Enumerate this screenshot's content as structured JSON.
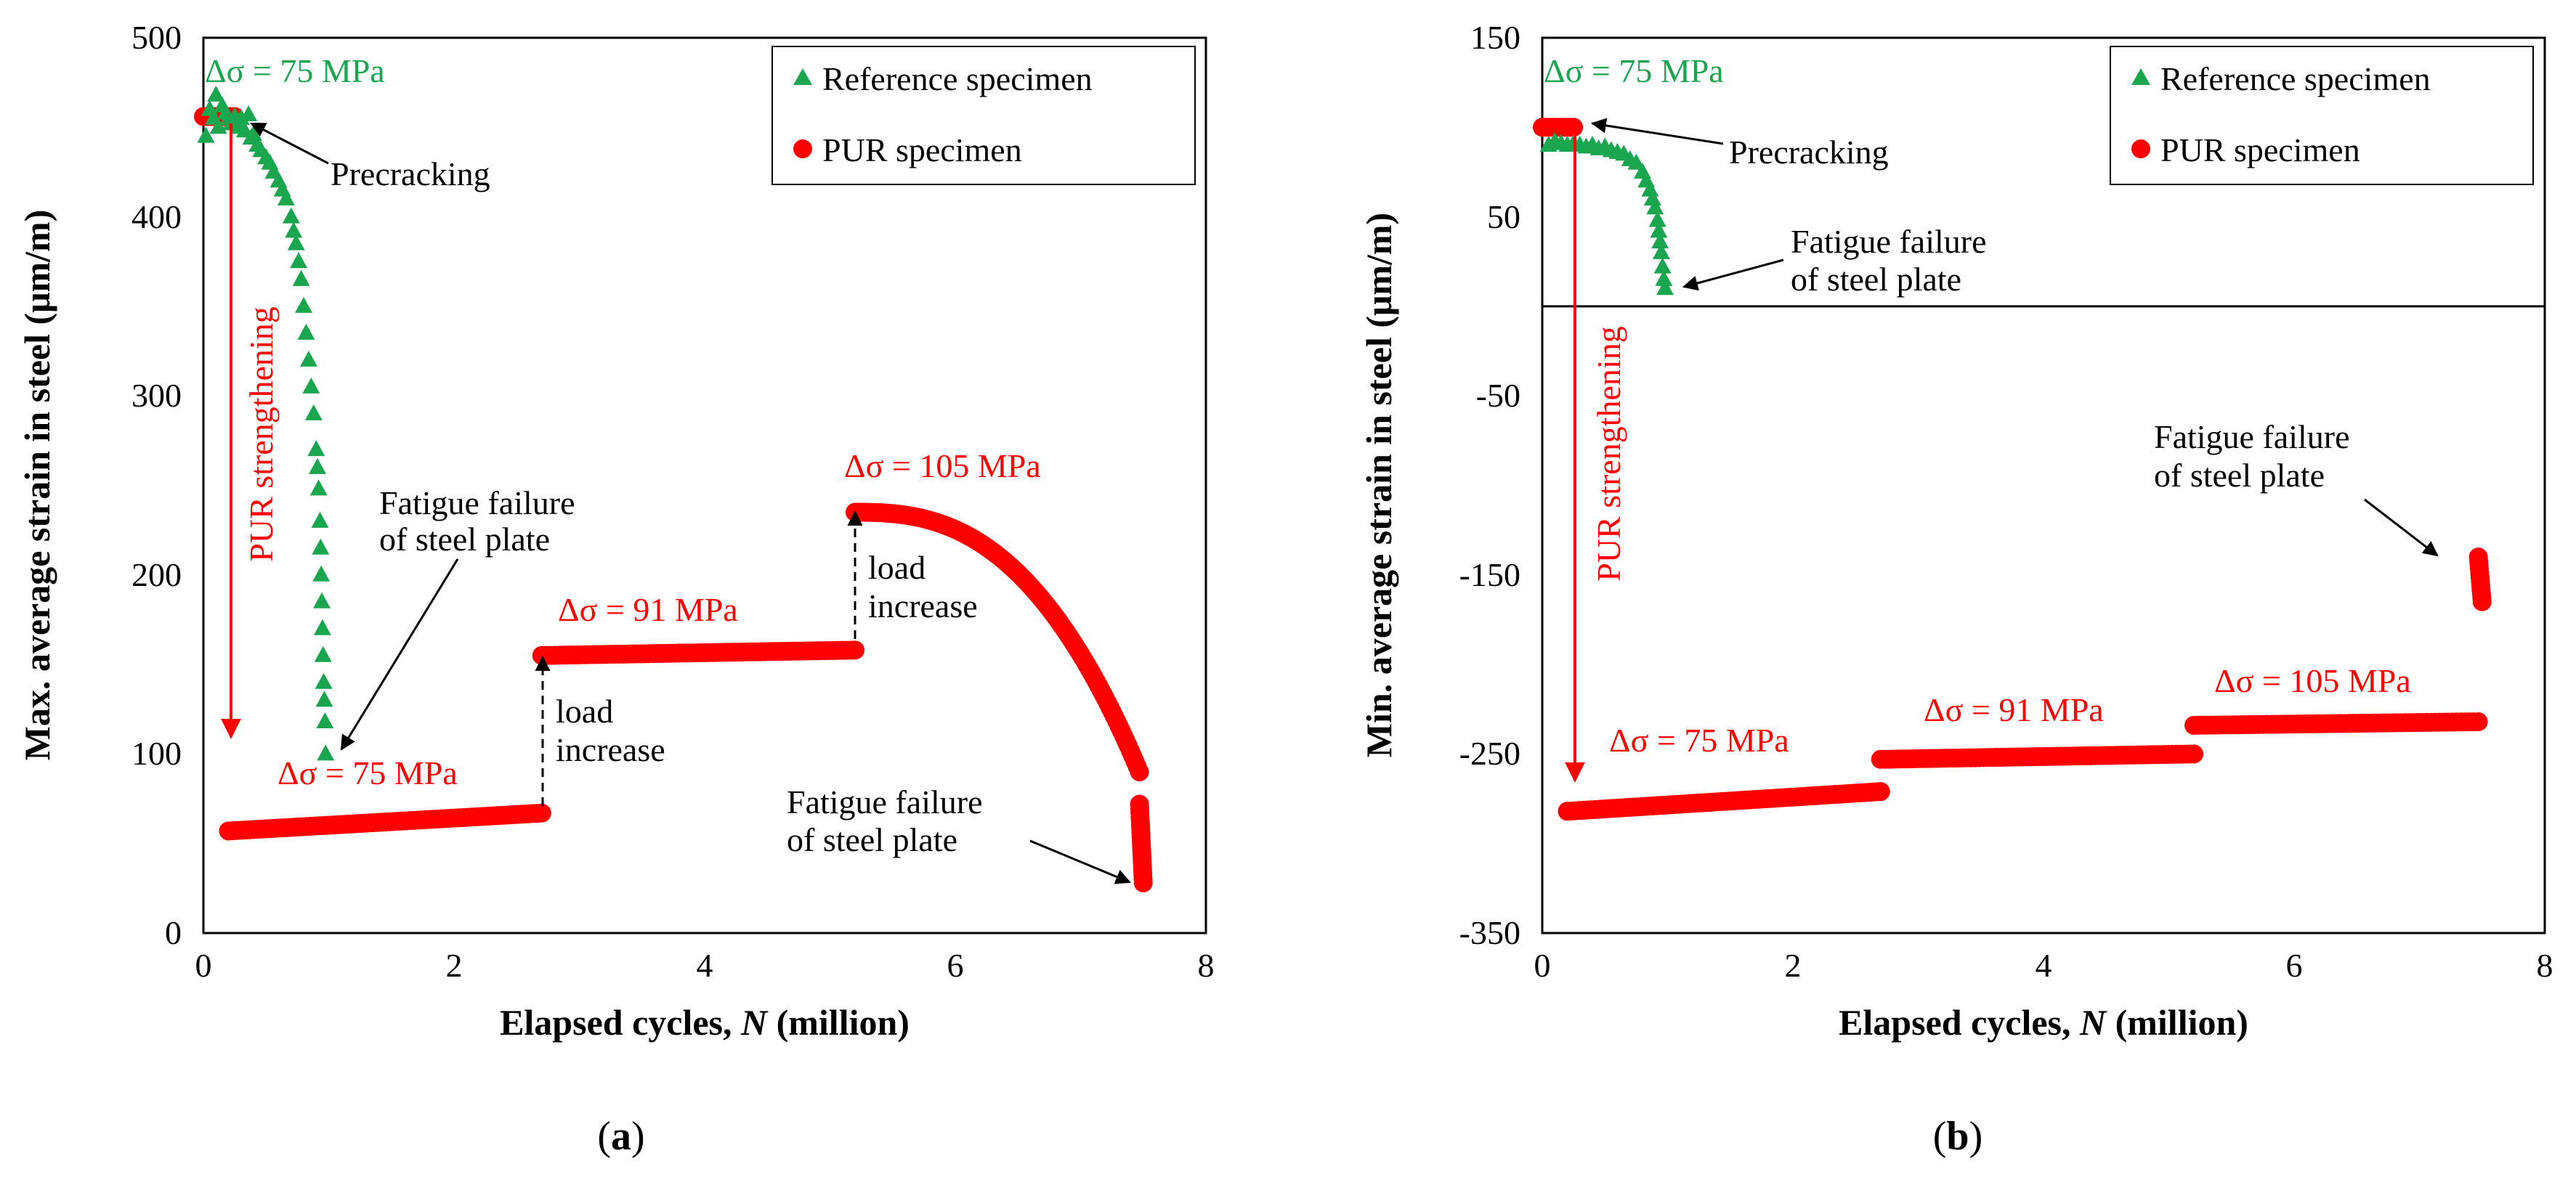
{
  "colors": {
    "reference": "#1aa64f",
    "pur": "#ff0000",
    "axis": "#000000",
    "annotation": "#000000"
  },
  "chart_data": [
    {
      "type": "scatter",
      "panel": "(a)",
      "panel_letter": "a",
      "xlabel": "Elapsed cycles, ",
      "xlabel_var": "N",
      "xlabel_suffix": " (million)",
      "ylabel": "Max. average strain in steel (μm/m)",
      "xlim": [
        0,
        8
      ],
      "ylim": [
        0,
        500
      ],
      "xticks": [
        0,
        2,
        4,
        6,
        8
      ],
      "yticks": [
        0,
        100,
        200,
        300,
        400,
        500
      ],
      "zero_line": false,
      "legend": {
        "position": "top-right",
        "entries": [
          "Reference specimen",
          "PUR specimen"
        ]
      },
      "series": [
        {
          "name": "Reference specimen",
          "marker": "triangle",
          "color": "#1aa64f",
          "points": [
            [
              0.02,
              445
            ],
            [
              0.05,
              460
            ],
            [
              0.08,
              455
            ],
            [
              0.1,
              468
            ],
            [
              0.12,
              450
            ],
            [
              0.15,
              462
            ],
            [
              0.18,
              458
            ],
            [
              0.2,
              455
            ],
            [
              0.22,
              452
            ],
            [
              0.25,
              456
            ],
            [
              0.28,
              450
            ],
            [
              0.3,
              455
            ],
            [
              0.33,
              448
            ],
            [
              0.36,
              457
            ],
            [
              0.38,
              444
            ],
            [
              0.4,
              446
            ],
            [
              0.43,
              440
            ],
            [
              0.46,
              437
            ],
            [
              0.5,
              433
            ],
            [
              0.53,
              430
            ],
            [
              0.56,
              425
            ],
            [
              0.6,
              420
            ],
            [
              0.63,
              415
            ],
            [
              0.66,
              410
            ],
            [
              0.7,
              400
            ],
            [
              0.72,
              392
            ],
            [
              0.74,
              385
            ],
            [
              0.76,
              375
            ],
            [
              0.78,
              365
            ],
            [
              0.8,
              350
            ],
            [
              0.82,
              335
            ],
            [
              0.84,
              320
            ],
            [
              0.86,
              305
            ],
            [
              0.88,
              290
            ],
            [
              0.9,
              270
            ],
            [
              0.91,
              260
            ],
            [
              0.92,
              248
            ],
            [
              0.93,
              230
            ],
            [
              0.935,
              215
            ],
            [
              0.94,
              200
            ],
            [
              0.945,
              185
            ],
            [
              0.95,
              170
            ],
            [
              0.955,
              155
            ],
            [
              0.96,
              140
            ],
            [
              0.965,
              130
            ],
            [
              0.97,
              118
            ],
            [
              0.975,
              100
            ]
          ]
        },
        {
          "name": "PUR specimen",
          "marker": "circle",
          "color": "#ff0000",
          "segments": [
            {
              "x": [
                0.0,
                0.25
              ],
              "y": [
                456,
                456
              ]
            },
            {
              "x": [
                0.2,
                2.7
              ],
              "y": [
                57,
                67
              ]
            },
            {
              "x": [
                2.7,
                5.2
              ],
              "y": [
                155,
                158
              ]
            },
            {
              "x": [
                5.2,
                7.47
              ],
              "y": [
                235,
                90
              ],
              "shape": "concave"
            },
            {
              "x": [
                7.47,
                7.5
              ],
              "y": [
                72,
                28
              ]
            }
          ]
        }
      ],
      "annotations": [
        {
          "text": "Δσ = 75 MPa",
          "color": "#1aa64f"
        },
        {
          "text": "Precracking",
          "color": "#000000"
        },
        {
          "text": "PUR strengthening",
          "color": "#ff0000"
        },
        {
          "text": "Fatigue failure",
          "color": "#000000"
        },
        {
          "text": "of steel plate",
          "color": "#000000"
        },
        {
          "text": "Δσ = 75 MPa",
          "color": "#ff0000"
        },
        {
          "text": "load",
          "color": "#000000"
        },
        {
          "text": "increase",
          "color": "#000000"
        },
        {
          "text": "Δσ = 91 MPa",
          "color": "#ff0000"
        },
        {
          "text": "Δσ = 105 MPa",
          "color": "#ff0000"
        },
        {
          "text": "load",
          "color": "#000000"
        },
        {
          "text": "increase",
          "color": "#000000"
        },
        {
          "text": "Fatigue failure",
          "color": "#000000"
        },
        {
          "text": "of steel plate",
          "color": "#000000"
        }
      ]
    },
    {
      "type": "scatter",
      "panel": "(b)",
      "panel_letter": "b",
      "xlabel": "Elapsed cycles, ",
      "xlabel_var": "N",
      "xlabel_suffix": " (million)",
      "ylabel": "Min. average strain in steel (μm/m)",
      "xlim": [
        0,
        8
      ],
      "ylim": [
        -350,
        150
      ],
      "xticks": [
        0,
        2,
        4,
        6,
        8
      ],
      "yticks": [
        -350,
        -250,
        -150,
        -50,
        50,
        150
      ],
      "zero_line": true,
      "legend": {
        "position": "top-right",
        "entries": [
          "Reference specimen",
          "PUR specimen"
        ]
      },
      "series": [
        {
          "name": "Reference specimen",
          "marker": "triangle",
          "color": "#1aa64f",
          "points": [
            [
              0.05,
              90
            ],
            [
              0.1,
              92
            ],
            [
              0.15,
              91
            ],
            [
              0.2,
              90
            ],
            [
              0.25,
              91
            ],
            [
              0.3,
              90
            ],
            [
              0.35,
              89
            ],
            [
              0.4,
              90
            ],
            [
              0.45,
              88
            ],
            [
              0.5,
              89
            ],
            [
              0.55,
              87
            ],
            [
              0.6,
              86
            ],
            [
              0.65,
              85
            ],
            [
              0.7,
              82
            ],
            [
              0.75,
              80
            ],
            [
              0.8,
              75
            ],
            [
              0.83,
              70
            ],
            [
              0.86,
              65
            ],
            [
              0.88,
              60
            ],
            [
              0.9,
              55
            ],
            [
              0.92,
              48
            ],
            [
              0.93,
              42
            ],
            [
              0.94,
              36
            ],
            [
              0.95,
              30
            ],
            [
              0.96,
              22
            ],
            [
              0.97,
              15
            ],
            [
              0.98,
              10
            ]
          ]
        },
        {
          "name": "PUR specimen",
          "marker": "circle",
          "color": "#ff0000",
          "segments": [
            {
              "x": [
                0.0,
                0.25
              ],
              "y": [
                100,
                100
              ]
            },
            {
              "x": [
                0.2,
                2.7
              ],
              "y": [
                -282,
                -271
              ]
            },
            {
              "x": [
                2.7,
                5.2
              ],
              "y": [
                -253,
                -250
              ]
            },
            {
              "x": [
                5.2,
                7.47
              ],
              "y": [
                -234,
                -232
              ]
            },
            {
              "x": [
                7.47,
                7.5
              ],
              "y": [
                -140,
                -165
              ]
            }
          ]
        }
      ],
      "annotations": [
        {
          "text": "Δσ = 75 MPa",
          "color": "#1aa64f"
        },
        {
          "text": "Precracking",
          "color": "#000000"
        },
        {
          "text": "Fatigue failure",
          "color": "#000000"
        },
        {
          "text": "of steel plate",
          "color": "#000000"
        },
        {
          "text": "PUR strengthening",
          "color": "#ff0000"
        },
        {
          "text": "Fatigue failure",
          "color": "#000000"
        },
        {
          "text": "of steel plate",
          "color": "#000000"
        },
        {
          "text": "Δσ = 75 MPa",
          "color": "#ff0000"
        },
        {
          "text": "Δσ = 91 MPa",
          "color": "#ff0000"
        },
        {
          "text": "Δσ = 105 MPa",
          "color": "#ff0000"
        }
      ]
    }
  ]
}
